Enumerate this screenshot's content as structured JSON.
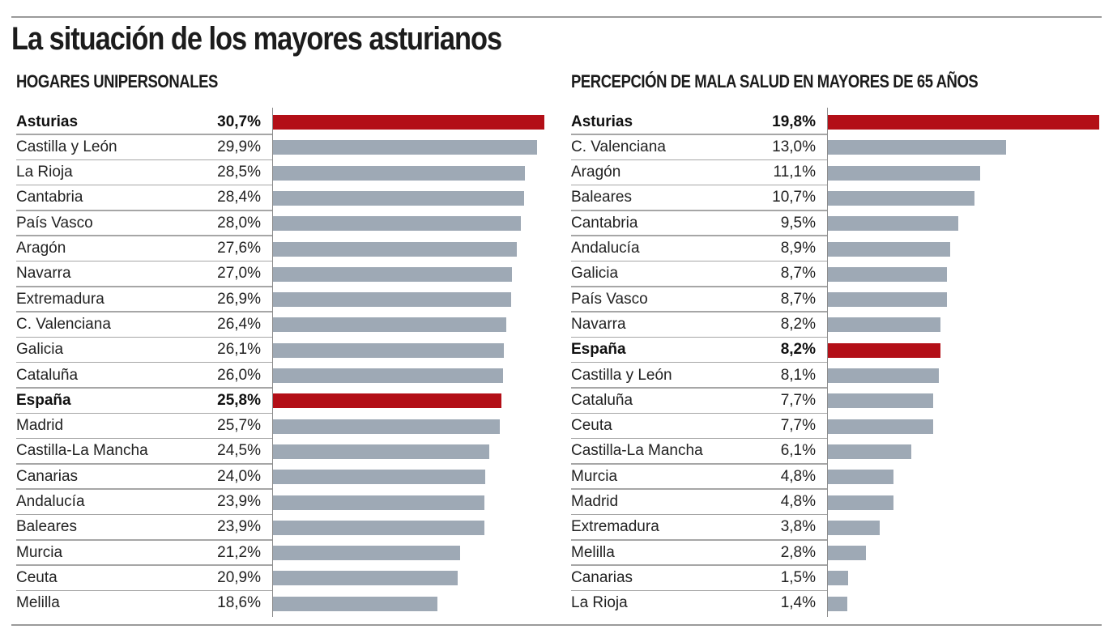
{
  "title": "La situación de los mayores asturianos",
  "colors": {
    "highlight": "#b30f17",
    "default": "#9ea9b5",
    "rule": "#9a9a9a"
  },
  "chart_data": [
    {
      "type": "bar",
      "orientation": "horizontal",
      "title": "HOGARES UNIPERSONALES",
      "xlabel": "",
      "ylabel": "",
      "unit": "%",
      "xlim": [
        0,
        30.7
      ],
      "grid": false,
      "categories": [
        "Asturias",
        "Castilla y León",
        "La Rioja",
        "Cantabria",
        "País Vasco",
        "Aragón",
        "Navarra",
        "Extremadura",
        "C. Valenciana",
        "Galicia",
        "Cataluña",
        "España",
        "Madrid",
        "Castilla-La Mancha",
        "Canarias",
        "Andalucía",
        "Baleares",
        "Murcia",
        "Ceuta",
        "Melilla"
      ],
      "values": [
        30.7,
        29.9,
        28.5,
        28.4,
        28.0,
        27.6,
        27.0,
        26.9,
        26.4,
        26.1,
        26.0,
        25.8,
        25.7,
        24.5,
        24.0,
        23.9,
        23.9,
        21.2,
        20.9,
        18.6
      ],
      "value_labels": [
        "30,7%",
        "29,9%",
        "28,5%",
        "28,4%",
        "28,0%",
        "27,6%",
        "27,0%",
        "26,9%",
        "26,4%",
        "26,1%",
        "26,0%",
        "25,8%",
        "25,7%",
        "24,5%",
        "24,0%",
        "23,9%",
        "23,9%",
        "21,2%",
        "20,9%",
        "18,6%"
      ],
      "highlighted": [
        "Asturias",
        "España"
      ]
    },
    {
      "type": "bar",
      "orientation": "horizontal",
      "title": "PERCEPCIÓN DE MALA SALUD EN MAYORES DE 65 AÑOS",
      "xlabel": "",
      "ylabel": "",
      "unit": "%",
      "xlim": [
        0,
        19.8
      ],
      "grid": false,
      "categories": [
        "Asturias",
        "C. Valenciana",
        "Aragón",
        "Baleares",
        "Cantabria",
        "Andalucía",
        "Galicia",
        "País Vasco",
        "Navarra",
        "España",
        "Castilla y León",
        "Cataluña",
        "Ceuta",
        "Castilla-La Mancha",
        "Murcia",
        "Madrid",
        "Extremadura",
        "Melilla",
        "Canarias",
        "La Rioja"
      ],
      "values": [
        19.8,
        13.0,
        11.1,
        10.7,
        9.5,
        8.9,
        8.7,
        8.7,
        8.2,
        8.2,
        8.1,
        7.7,
        7.7,
        6.1,
        4.8,
        4.8,
        3.8,
        2.8,
        1.5,
        1.4
      ],
      "value_labels": [
        "19,8%",
        "13,0%",
        "11,1%",
        "10,7%",
        "9,5%",
        "8,9%",
        "8,7%",
        "8,7%",
        "8,2%",
        "8,2%",
        "8,1%",
        "7,7%",
        "7,7%",
        "6,1%",
        "4,8%",
        "4,8%",
        "3,8%",
        "2,8%",
        "1,5%",
        "1,4%"
      ],
      "highlighted": [
        "Asturias",
        "España"
      ]
    }
  ]
}
